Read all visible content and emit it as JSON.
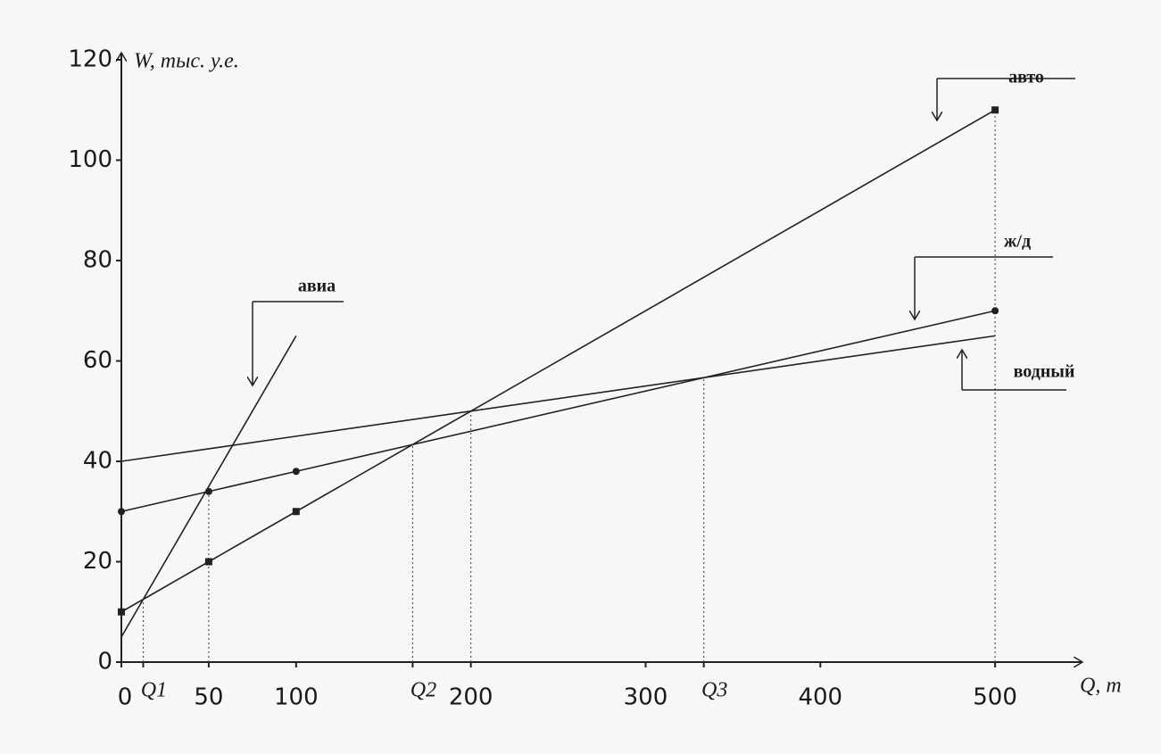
{
  "chart_data": {
    "type": "line",
    "x_label": "Q, т",
    "y_label": "W, тыс. у.е.",
    "xlim": [
      0,
      550
    ],
    "ylim": [
      0,
      120
    ],
    "xticks": [
      0,
      {
        "value": 12.5,
        "label": "Q1"
      },
      50,
      100,
      {
        "value": 166.7,
        "label": "Q2"
      },
      200,
      300,
      {
        "value": 333.3,
        "label": "Q3"
      },
      400,
      500
    ],
    "yticks": [
      0,
      20,
      40,
      60,
      80,
      100,
      120
    ],
    "drop_lines": [
      12.5,
      50,
      166.7,
      200,
      333.3,
      500
    ],
    "series": [
      {
        "name": "авто",
        "color": "#222222",
        "marker": "square",
        "x": [
          0,
          50,
          100,
          500
        ],
        "values": [
          10,
          20,
          30,
          110
        ]
      },
      {
        "name": "ж/д",
        "color": "#222222",
        "marker": "circle",
        "x": [
          0,
          50,
          100,
          500
        ],
        "values": [
          30,
          34,
          38,
          70
        ]
      },
      {
        "name": "авиа",
        "color": "#222222",
        "marker": "none",
        "x": [
          0,
          100
        ],
        "values": [
          5,
          65
        ]
      },
      {
        "name": "водный",
        "color": "#222222",
        "marker": "none",
        "x": [
          0,
          50,
          100,
          500
        ],
        "values": [
          40,
          42.5,
          45,
          65
        ]
      }
    ]
  }
}
